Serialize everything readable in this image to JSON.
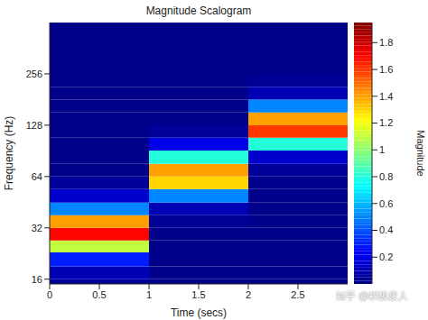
{
  "chart_data": {
    "type": "heatmap",
    "title": "Magnitude Scalogram",
    "x_label": "Time (secs)",
    "y_label": "Frequency (Hz)",
    "xlim": [
      0,
      3
    ],
    "xticks": [
      0,
      0.5,
      1,
      1.5,
      2,
      2.5
    ],
    "ylim": [
      15,
      512
    ],
    "yticks": [
      16,
      32,
      64,
      128,
      256
    ],
    "log": "y",
    "grid": false,
    "x_edges": [
      0,
      1,
      2,
      3
    ],
    "y_edges": [
      15,
      16,
      19,
      23,
      27,
      32,
      38,
      45,
      54,
      64,
      76,
      91,
      108,
      128,
      152,
      181,
      215,
      256,
      512
    ],
    "cells": [
      [
        0.05,
        0.1,
        0.3,
        1.1,
        1.7,
        1.4,
        0.5,
        0.15,
        0.05,
        0.02,
        0.02,
        0.02,
        0.02,
        0.02,
        0.02,
        0.02,
        0.02,
        0.02
      ],
      [
        0.02,
        0.02,
        0.02,
        0.02,
        0.02,
        0.04,
        0.1,
        0.5,
        1.3,
        1.4,
        0.8,
        0.2,
        0.05,
        0.02,
        0.02,
        0.02,
        0.02,
        0.02
      ],
      [
        0.02,
        0.02,
        0.02,
        0.02,
        0.02,
        0.02,
        0.02,
        0.02,
        0.03,
        0.05,
        0.15,
        0.8,
        1.6,
        1.4,
        0.5,
        0.1,
        0.04,
        0.02
      ]
    ],
    "colorbar": {
      "label": "Magnitude",
      "range": [
        0,
        1.95
      ],
      "ticks": [
        0.2,
        0.4,
        0.6,
        0.8,
        1,
        1.2,
        1.4,
        1.6,
        1.8
      ]
    },
    "annotations": [
      "知乎 @积极废人"
    ]
  }
}
